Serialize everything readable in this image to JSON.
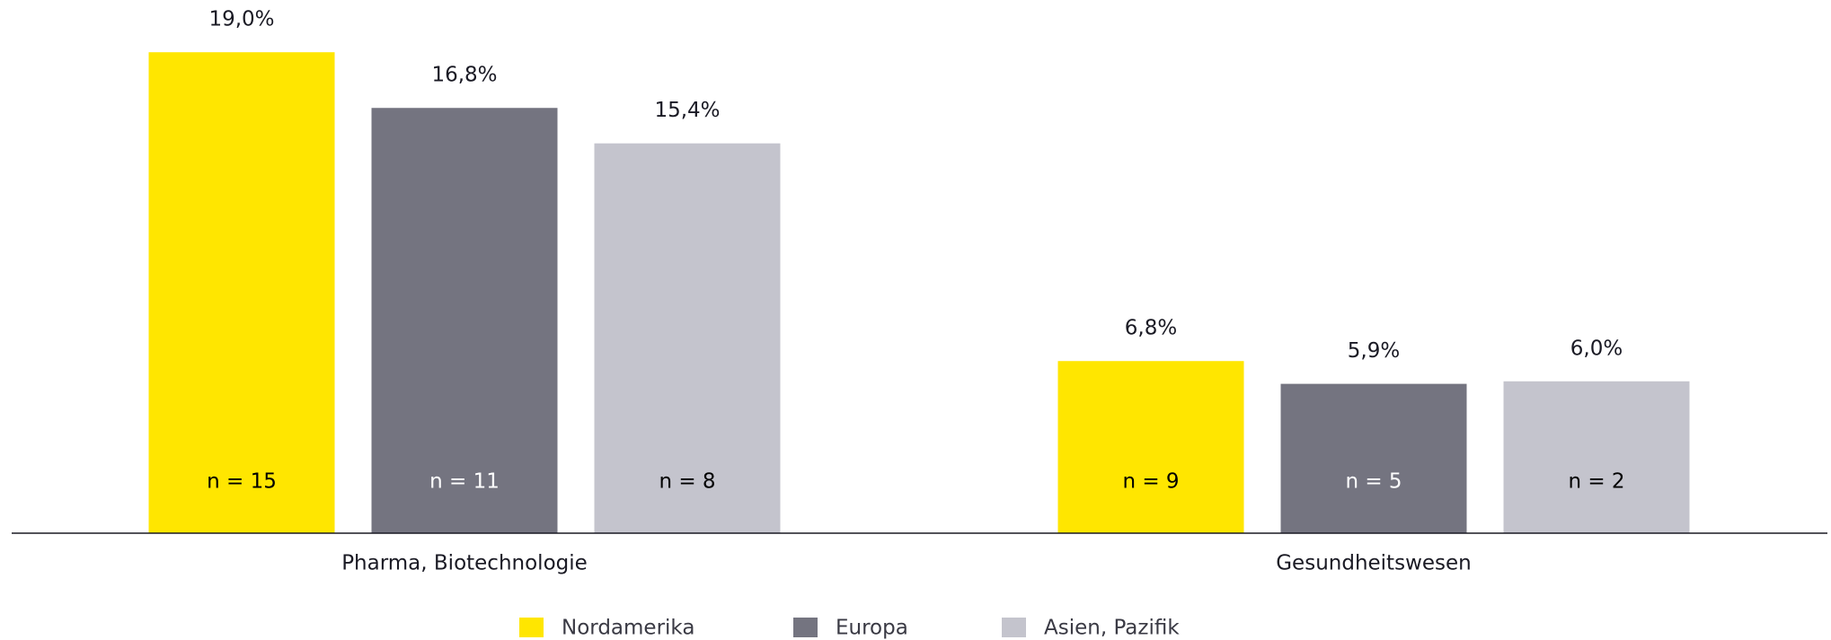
{
  "chart_data": {
    "type": "bar",
    "categories": [
      "Pharma, Biotechnologie",
      "Gesundheitswesen"
    ],
    "series": [
      {
        "name": "Nordamerika",
        "color": "#ffe600",
        "text_color": "#000000",
        "values": [
          19.0,
          6.8
        ],
        "value_labels": [
          "19,0%",
          "6,8%"
        ],
        "sample_labels": [
          "n = 15",
          "n = 9"
        ]
      },
      {
        "name": "Europa",
        "color": "#747480",
        "text_color": "#ffffff",
        "values": [
          16.8,
          5.9
        ],
        "value_labels": [
          "16,8%",
          "5,9%"
        ],
        "sample_labels": [
          "n = 11",
          "n = 5"
        ]
      },
      {
        "name": "Asien, Pazifik",
        "color": "#c4c4cd",
        "text_color": "#000000",
        "values": [
          15.4,
          6.0
        ],
        "value_labels": [
          "15,4%",
          "6,0%"
        ],
        "sample_labels": [
          "n = 8",
          "n = 2"
        ]
      }
    ],
    "ylim": [
      0,
      20
    ],
    "legend": "bottom"
  }
}
